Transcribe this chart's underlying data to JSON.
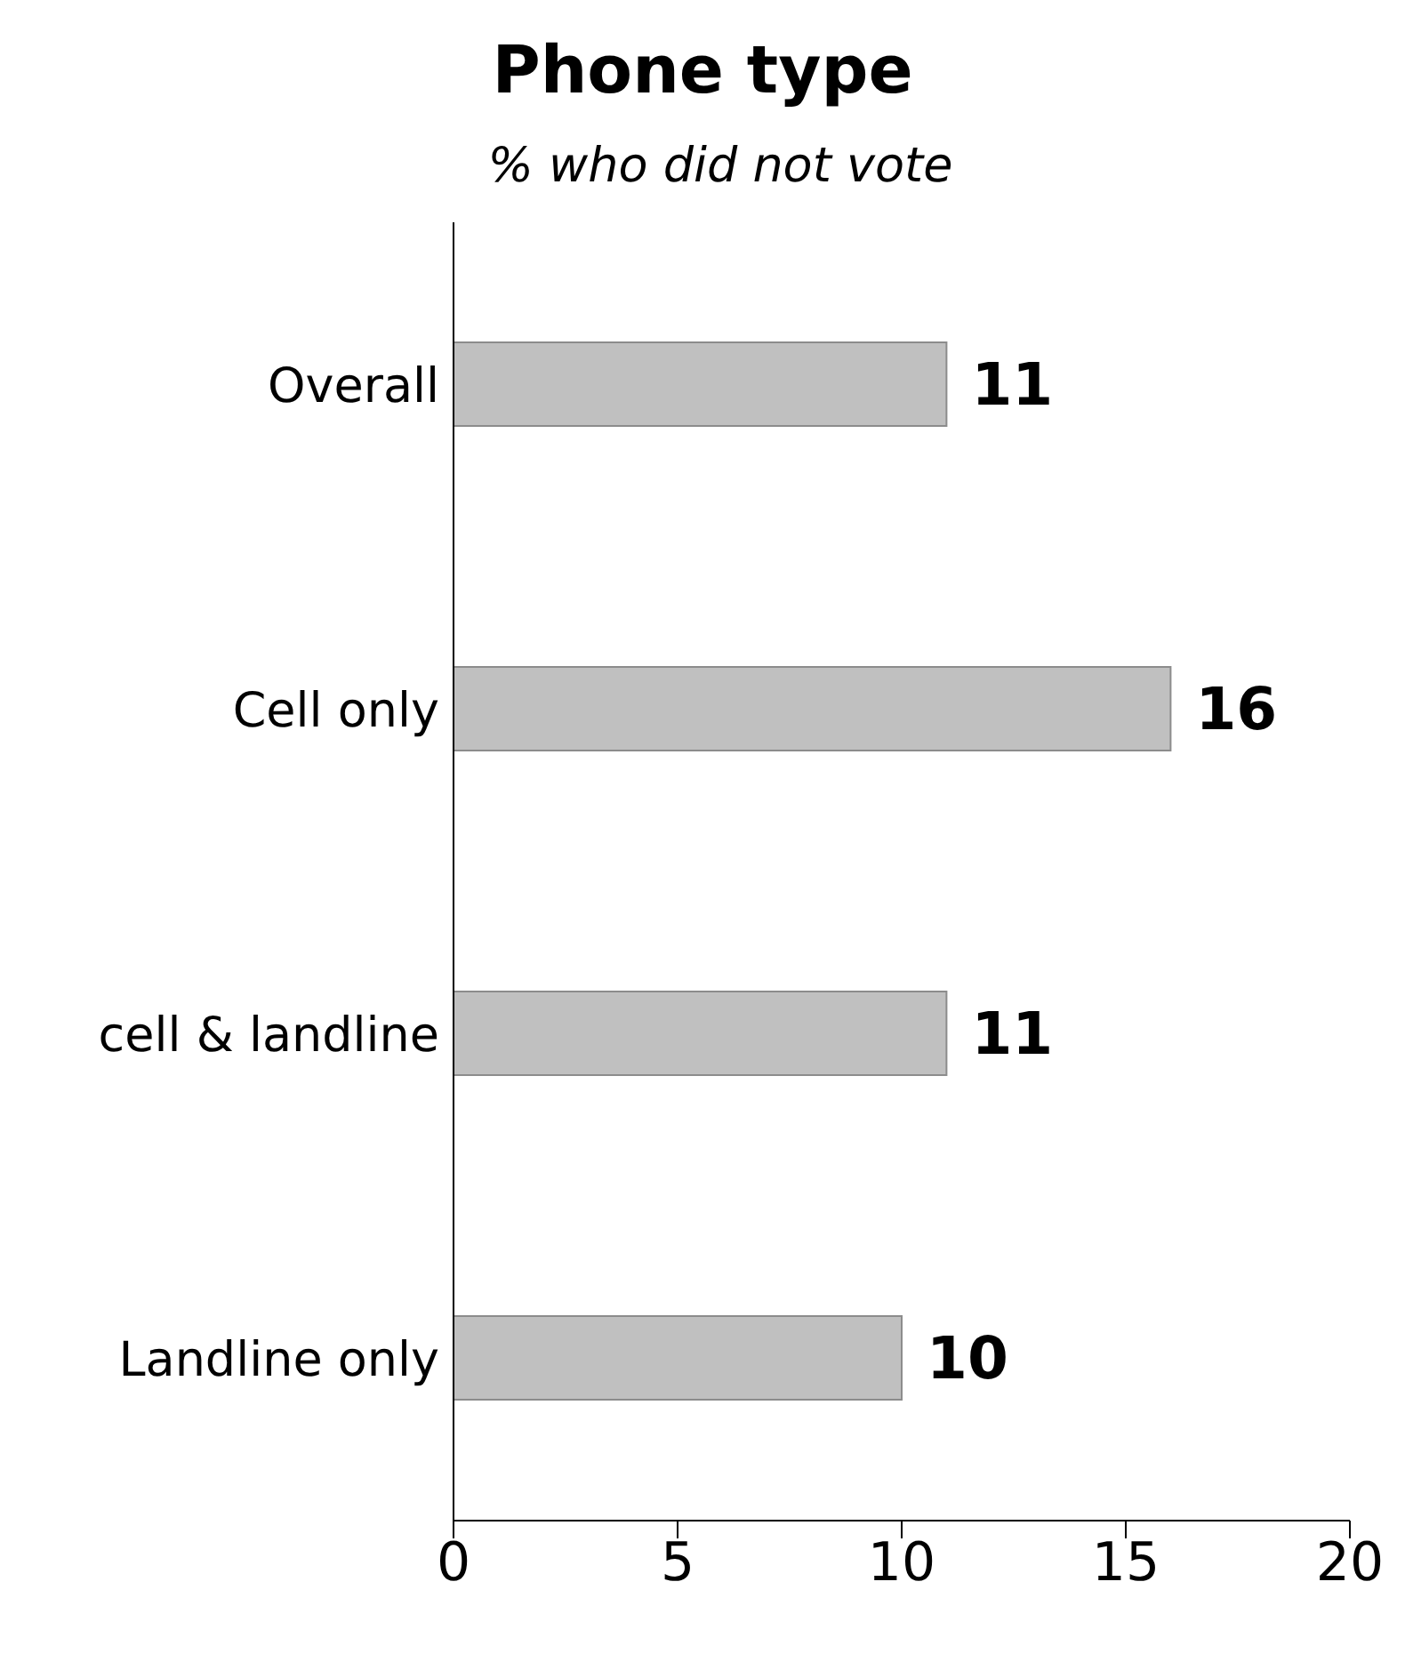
{
  "chart_data": {
    "type": "bar",
    "orientation": "horizontal",
    "title": "Phone type",
    "subtitle": "% who did not vote",
    "categories": [
      "Overall",
      "Cell only",
      "cell & landline",
      "Landline only"
    ],
    "values": [
      11,
      16,
      11,
      10
    ],
    "color": "#c0c0c0",
    "xlim": [
      0,
      20
    ],
    "xticks": [
      0,
      5,
      10,
      15,
      20
    ],
    "data_labels": true,
    "grid": false,
    "legend": false
  }
}
